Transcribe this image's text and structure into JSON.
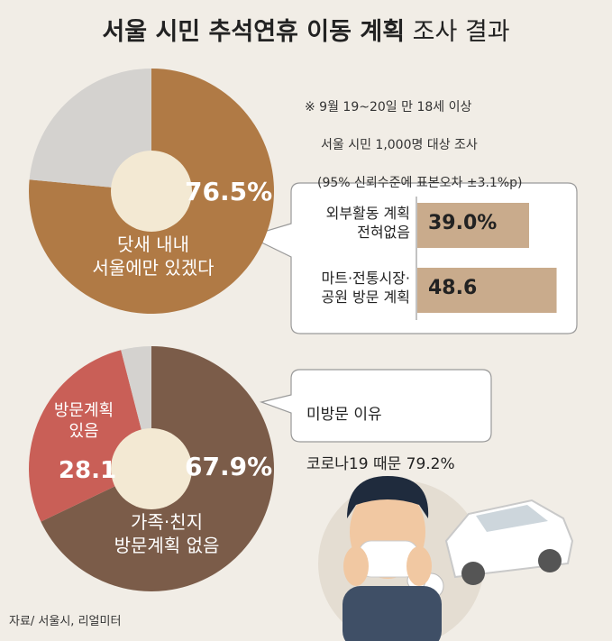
{
  "header": {
    "title_bold": "서울 시민 추석연휴 이동 계획",
    "title_light": "조사 결과"
  },
  "notes": [
    "※ 9월 19~20일 만 18세 이상",
    "서울 시민 1,000명 대상 조사",
    "(95% 신뢰수준에 표본오차 ±3.1%p)"
  ],
  "chart_data": [
    {
      "type": "pie",
      "categories": [
        "닷새 내내\n서울에만 있겠다",
        null
      ],
      "values": [
        76.5,
        23.5
      ],
      "value_labels": [
        "76.5%",
        null
      ],
      "colors": [
        "#b07a45",
        "#d4d2cf"
      ]
    },
    {
      "type": "bar",
      "categories": [
        "외부활동 계획\n전혀없음",
        "마트·전통시장·\n공원 방문 계획"
      ],
      "values": [
        39.0,
        48.6
      ],
      "value_labels": [
        "39.0%",
        "48.6"
      ],
      "color": "#c9ab8c",
      "xlim": [
        0,
        50
      ]
    },
    {
      "type": "pie",
      "categories": [
        "가족·친지\n방문계획 없음",
        "방문계획\n있음",
        null
      ],
      "values": [
        67.9,
        28.1,
        4.0
      ],
      "value_labels": [
        "67.9%",
        "28.1",
        null
      ],
      "colors": [
        "#7b5c49",
        "#c95f57",
        "#d4d2cf"
      ]
    }
  ],
  "callout": [
    "미방문 이유",
    "코로나19 때문 79.2%"
  ],
  "source": "자료/ 서울시, 리얼미터"
}
